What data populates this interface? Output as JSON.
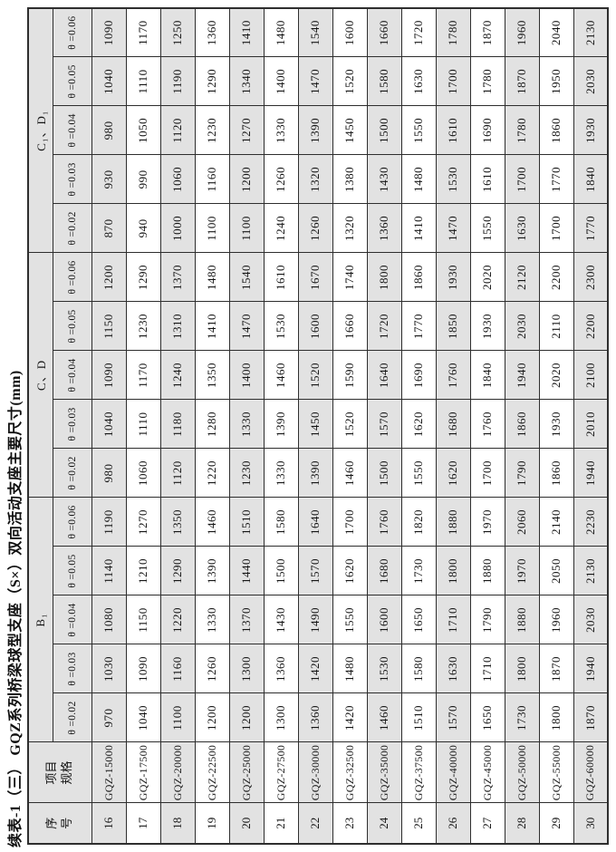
{
  "page": {
    "title": "续表-1（三） GQZ系列桥梁球型支座（S×）双向活动支座主要尺寸(mm)"
  },
  "table": {
    "index_header": [
      "序",
      "号"
    ],
    "spec_header": [
      "项目",
      "规格"
    ],
    "groups": [
      {
        "key": "B1",
        "label": "B₁",
        "theta_headers": [
          "θ =0.02",
          "θ =0.03",
          "θ =0.04",
          "θ =0.05",
          "θ =0.06"
        ]
      },
      {
        "key": "CD",
        "label": "C、D",
        "theta_headers": [
          "θ =0.02",
          "θ =0.03",
          "θ =0.04",
          "θ =0.05",
          "θ =0.06"
        ]
      },
      {
        "key": "C1D1",
        "label": "C₁、D₁",
        "theta_headers": [
          "θ =0.02",
          "θ =0.03",
          "θ =0.04",
          "θ =0.05",
          "θ =0.06"
        ]
      }
    ],
    "rows": [
      {
        "no": "16",
        "spec": "GQZ-15000",
        "B1": [
          "970",
          "1030",
          "1080",
          "1140",
          "1190"
        ],
        "CD": [
          "980",
          "1040",
          "1090",
          "1150",
          "1200"
        ],
        "C1D1": [
          "870",
          "930",
          "980",
          "1040",
          "1090"
        ]
      },
      {
        "no": "17",
        "spec": "GQZ-17500",
        "B1": [
          "1040",
          "1090",
          "1150",
          "1210",
          "1270"
        ],
        "CD": [
          "1060",
          "1110",
          "1170",
          "1230",
          "1290"
        ],
        "C1D1": [
          "940",
          "990",
          "1050",
          "1110",
          "1170"
        ]
      },
      {
        "no": "18",
        "spec": "GQZ-20000",
        "B1": [
          "1100",
          "1160",
          "1220",
          "1290",
          "1350"
        ],
        "CD": [
          "1120",
          "1180",
          "1240",
          "1310",
          "1370"
        ],
        "C1D1": [
          "1000",
          "1060",
          "1120",
          "1190",
          "1250"
        ]
      },
      {
        "no": "19",
        "spec": "GQZ-22500",
        "B1": [
          "1200",
          "1260",
          "1330",
          "1390",
          "1460"
        ],
        "CD": [
          "1220",
          "1280",
          "1350",
          "1410",
          "1480"
        ],
        "C1D1": [
          "1100",
          "1160",
          "1230",
          "1290",
          "1360"
        ]
      },
      {
        "no": "20",
        "spec": "GQZ-25000",
        "B1": [
          "1200",
          "1300",
          "1370",
          "1440",
          "1510"
        ],
        "CD": [
          "1230",
          "1330",
          "1400",
          "1470",
          "1540"
        ],
        "C1D1": [
          "1100",
          "1200",
          "1270",
          "1340",
          "1410"
        ]
      },
      {
        "no": "21",
        "spec": "GQZ-27500",
        "B1": [
          "1300",
          "1360",
          "1430",
          "1500",
          "1580"
        ],
        "CD": [
          "1330",
          "1390",
          "1460",
          "1530",
          "1610"
        ],
        "C1D1": [
          "1240",
          "1260",
          "1330",
          "1400",
          "1480"
        ]
      },
      {
        "no": "22",
        "spec": "GQZ-30000",
        "B1": [
          "1360",
          "1420",
          "1490",
          "1570",
          "1640"
        ],
        "CD": [
          "1390",
          "1450",
          "1520",
          "1600",
          "1670"
        ],
        "C1D1": [
          "1260",
          "1320",
          "1390",
          "1470",
          "1540"
        ]
      },
      {
        "no": "23",
        "spec": "GQZ-32500",
        "B1": [
          "1420",
          "1480",
          "1550",
          "1620",
          "1700"
        ],
        "CD": [
          "1460",
          "1520",
          "1590",
          "1660",
          "1740"
        ],
        "C1D1": [
          "1320",
          "1380",
          "1450",
          "1520",
          "1600"
        ]
      },
      {
        "no": "24",
        "spec": "GQZ-35000",
        "B1": [
          "1460",
          "1530",
          "1600",
          "1680",
          "1760"
        ],
        "CD": [
          "1500",
          "1570",
          "1640",
          "1720",
          "1800"
        ],
        "C1D1": [
          "1360",
          "1430",
          "1500",
          "1580",
          "1660"
        ]
      },
      {
        "no": "25",
        "spec": "GQZ-37500",
        "B1": [
          "1510",
          "1580",
          "1650",
          "1730",
          "1820"
        ],
        "CD": [
          "1550",
          "1620",
          "1690",
          "1770",
          "1860"
        ],
        "C1D1": [
          "1410",
          "1480",
          "1550",
          "1630",
          "1720"
        ]
      },
      {
        "no": "26",
        "spec": "GQZ-40000",
        "B1": [
          "1570",
          "1630",
          "1710",
          "1800",
          "1880"
        ],
        "CD": [
          "1620",
          "1680",
          "1760",
          "1850",
          "1930"
        ],
        "C1D1": [
          "1470",
          "1530",
          "1610",
          "1700",
          "1780"
        ]
      },
      {
        "no": "27",
        "spec": "GQZ-45000",
        "B1": [
          "1650",
          "1710",
          "1790",
          "1880",
          "1970"
        ],
        "CD": [
          "1700",
          "1760",
          "1840",
          "1930",
          "2020"
        ],
        "C1D1": [
          "1550",
          "1610",
          "1690",
          "1780",
          "1870"
        ]
      },
      {
        "no": "28",
        "spec": "GQZ-50000",
        "B1": [
          "1730",
          "1800",
          "1880",
          "1970",
          "2060"
        ],
        "CD": [
          "1790",
          "1860",
          "1940",
          "2030",
          "2120"
        ],
        "C1D1": [
          "1630",
          "1700",
          "1780",
          "1870",
          "1960"
        ]
      },
      {
        "no": "29",
        "spec": "GQZ-55000",
        "B1": [
          "1800",
          "1870",
          "1960",
          "2050",
          "2140"
        ],
        "CD": [
          "1860",
          "1930",
          "2020",
          "2110",
          "2200"
        ],
        "C1D1": [
          "1700",
          "1770",
          "1860",
          "1950",
          "2040"
        ]
      },
      {
        "no": "30",
        "spec": "GQZ-60000",
        "B1": [
          "1870",
          "1940",
          "2030",
          "2130",
          "2230"
        ],
        "CD": [
          "1940",
          "2010",
          "2100",
          "2200",
          "2300"
        ],
        "C1D1": [
          "1770",
          "1840",
          "1930",
          "2030",
          "2130"
        ]
      }
    ],
    "colors": {
      "shaded_cell": "#e2e2e2",
      "border": "#2e2e2e",
      "text": "#151515"
    }
  }
}
